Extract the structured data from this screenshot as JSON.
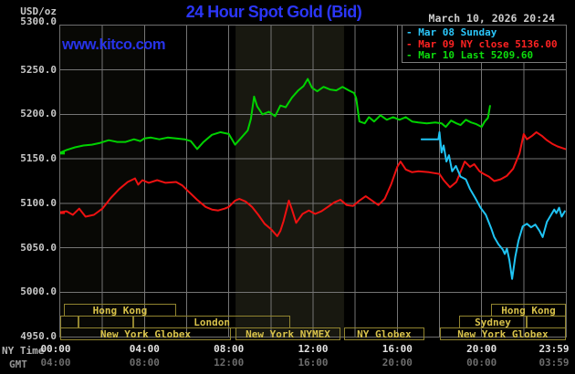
{
  "header": {
    "unit_label": "USD/oz",
    "title": "24 Hour Spot Gold (Bid)",
    "datetime": "March 10, 2026 20:24",
    "watermark": "www.kitco.com"
  },
  "legend": [
    {
      "marker": "-",
      "label": "Mar 08 Sunday",
      "color": "#2bc7fb"
    },
    {
      "marker": "-",
      "label": "Mar 09 NY close 5136.00",
      "color": "#ff2222"
    },
    {
      "marker": "-",
      "label": "Mar 10 Last 5209.60",
      "color": "#0ddd0d"
    }
  ],
  "axis": {
    "ny_time_label": "NY Time",
    "gmt_label": "GMT",
    "ny_ticks": [
      {
        "t": 0,
        "label": "00:00"
      },
      {
        "t": 4,
        "label": "04:00"
      },
      {
        "t": 8,
        "label": "08:00"
      },
      {
        "t": 12,
        "label": "12:00"
      },
      {
        "t": 16,
        "label": "16:00"
      },
      {
        "t": 20,
        "label": "20:00"
      },
      {
        "t": 24,
        "label": "23:59"
      }
    ],
    "gmt_ticks": [
      {
        "t": 0,
        "label": "04:00"
      },
      {
        "t": 4,
        "label": "08:00"
      },
      {
        "t": 8,
        "label": "12:00"
      },
      {
        "t": 12,
        "label": "16:00"
      },
      {
        "t": 16,
        "label": "20:00"
      },
      {
        "t": 20,
        "label": "00:00"
      },
      {
        "t": 24,
        "label": "03:59"
      }
    ],
    "y_ticks": [
      {
        "v": 5300,
        "label": "5300.0"
      },
      {
        "v": 5250,
        "label": "5250.0"
      },
      {
        "v": 5200,
        "label": "5200.0"
      },
      {
        "v": 5150,
        "label": "5150.0"
      },
      {
        "v": 5100,
        "label": "5100.0"
      },
      {
        "v": 5050,
        "label": "5050.0"
      },
      {
        "v": 5000,
        "label": "5000.0"
      },
      {
        "v": 4950,
        "label": "4950.0"
      }
    ]
  },
  "chart_data": {
    "type": "line",
    "title": "24 Hour Spot Gold (Bid)",
    "x_unit": "hours, NY time",
    "x_range": [
      0,
      24
    ],
    "y_range": [
      4950,
      5300
    ],
    "y_tick_step": 50,
    "x_gridline_every_hours": 2,
    "grid": true,
    "legend_position": "top-right",
    "shaded_bands": [
      {
        "t1": 0,
        "t2": 4,
        "opacity": 0.035
      },
      {
        "t1": 8.32,
        "t2": 13.47,
        "opacity": 0.1
      }
    ],
    "series": [
      {
        "id": "mar09",
        "name": "Mar 09 (NY close 5136.00)",
        "color": "#ee1111",
        "points": [
          [
            0.0,
            5090
          ],
          [
            0.3,
            5091
          ],
          [
            0.6,
            5087
          ],
          [
            0.9,
            5094
          ],
          [
            1.2,
            5085
          ],
          [
            1.6,
            5087
          ],
          [
            2.0,
            5094
          ],
          [
            2.4,
            5106
          ],
          [
            2.8,
            5116
          ],
          [
            3.2,
            5124
          ],
          [
            3.55,
            5128
          ],
          [
            3.7,
            5121
          ],
          [
            3.9,
            5126
          ],
          [
            4.2,
            5123
          ],
          [
            4.6,
            5126
          ],
          [
            5.0,
            5123
          ],
          [
            5.5,
            5124
          ],
          [
            5.8,
            5120
          ],
          [
            6.1,
            5113
          ],
          [
            6.5,
            5104
          ],
          [
            6.9,
            5096
          ],
          [
            7.2,
            5093
          ],
          [
            7.5,
            5092
          ],
          [
            7.8,
            5094
          ],
          [
            8.0,
            5096
          ],
          [
            8.3,
            5103
          ],
          [
            8.5,
            5105
          ],
          [
            8.8,
            5102
          ],
          [
            9.1,
            5096
          ],
          [
            9.4,
            5087
          ],
          [
            9.7,
            5077
          ],
          [
            10.0,
            5071
          ],
          [
            10.3,
            5063
          ],
          [
            10.45,
            5069
          ],
          [
            10.6,
            5080
          ],
          [
            10.85,
            5103
          ],
          [
            11.0,
            5093
          ],
          [
            11.2,
            5078
          ],
          [
            11.5,
            5088
          ],
          [
            11.8,
            5092
          ],
          [
            12.1,
            5088
          ],
          [
            12.4,
            5091
          ],
          [
            12.7,
            5096
          ],
          [
            13.0,
            5101
          ],
          [
            13.3,
            5104
          ],
          [
            13.6,
            5098
          ],
          [
            13.9,
            5097
          ],
          [
            14.2,
            5103
          ],
          [
            14.5,
            5108
          ],
          [
            14.8,
            5103
          ],
          [
            15.1,
            5098
          ],
          [
            15.4,
            5105
          ],
          [
            15.7,
            5121
          ],
          [
            16.0,
            5141
          ],
          [
            16.15,
            5147
          ],
          [
            16.4,
            5138
          ],
          [
            16.7,
            5135
          ],
          [
            17.0,
            5136
          ],
          [
            17.5,
            5135
          ],
          [
            18.0,
            5133
          ],
          [
            18.2,
            5126
          ],
          [
            18.5,
            5118
          ],
          [
            18.8,
            5124
          ],
          [
            19.05,
            5138
          ],
          [
            19.2,
            5147
          ],
          [
            19.45,
            5141
          ],
          [
            19.65,
            5144
          ],
          [
            19.9,
            5136
          ],
          [
            20.1,
            5133
          ],
          [
            20.35,
            5130
          ],
          [
            20.6,
            5125
          ],
          [
            20.9,
            5127
          ],
          [
            21.2,
            5131
          ],
          [
            21.5,
            5139
          ],
          [
            21.8,
            5156
          ],
          [
            22.0,
            5178
          ],
          [
            22.15,
            5172
          ],
          [
            22.4,
            5176
          ],
          [
            22.6,
            5180
          ],
          [
            22.85,
            5176
          ],
          [
            23.1,
            5171
          ],
          [
            23.35,
            5167
          ],
          [
            23.6,
            5164
          ],
          [
            23.98,
            5161
          ]
        ]
      },
      {
        "id": "mar08",
        "name": "Mar 08 Sunday",
        "color": "#1fc4f4",
        "points": [
          [
            17.15,
            5172
          ],
          [
            17.95,
            5172
          ],
          [
            18.0,
            5180
          ],
          [
            18.1,
            5157
          ],
          [
            18.2,
            5165
          ],
          [
            18.33,
            5147
          ],
          [
            18.45,
            5154
          ],
          [
            18.6,
            5136
          ],
          [
            18.78,
            5142
          ],
          [
            19.0,
            5130
          ],
          [
            19.25,
            5127
          ],
          [
            19.45,
            5116
          ],
          [
            19.7,
            5106
          ],
          [
            19.95,
            5095
          ],
          [
            20.2,
            5087
          ],
          [
            20.45,
            5072
          ],
          [
            20.6,
            5062
          ],
          [
            20.8,
            5054
          ],
          [
            21.0,
            5048
          ],
          [
            21.1,
            5043
          ],
          [
            21.2,
            5049
          ],
          [
            21.32,
            5036
          ],
          [
            21.45,
            5015
          ],
          [
            21.6,
            5040
          ],
          [
            21.75,
            5058
          ],
          [
            21.95,
            5074
          ],
          [
            22.15,
            5077
          ],
          [
            22.35,
            5073
          ],
          [
            22.55,
            5076
          ],
          [
            22.75,
            5069
          ],
          [
            22.9,
            5062
          ],
          [
            23.1,
            5079
          ],
          [
            23.3,
            5087
          ],
          [
            23.45,
            5093
          ],
          [
            23.55,
            5089
          ],
          [
            23.68,
            5095
          ],
          [
            23.8,
            5085
          ],
          [
            23.95,
            5091
          ]
        ]
      },
      {
        "id": "mar10",
        "name": "Mar 10 (Last 5209.60)",
        "color": "#00d200",
        "points": [
          [
            0.0,
            5157
          ],
          [
            0.3,
            5160
          ],
          [
            0.7,
            5163
          ],
          [
            1.1,
            5165
          ],
          [
            1.5,
            5166
          ],
          [
            1.9,
            5168
          ],
          [
            2.3,
            5171
          ],
          [
            2.7,
            5169
          ],
          [
            3.1,
            5169
          ],
          [
            3.5,
            5172
          ],
          [
            3.8,
            5170
          ],
          [
            4.0,
            5173
          ],
          [
            4.3,
            5174
          ],
          [
            4.7,
            5172
          ],
          [
            5.1,
            5174
          ],
          [
            5.5,
            5173
          ],
          [
            5.9,
            5172
          ],
          [
            6.2,
            5170
          ],
          [
            6.5,
            5161
          ],
          [
            6.8,
            5169
          ],
          [
            7.2,
            5177
          ],
          [
            7.6,
            5180
          ],
          [
            8.0,
            5178
          ],
          [
            8.3,
            5166
          ],
          [
            8.6,
            5174
          ],
          [
            8.9,
            5182
          ],
          [
            9.05,
            5195
          ],
          [
            9.2,
            5220
          ],
          [
            9.35,
            5209
          ],
          [
            9.6,
            5200
          ],
          [
            9.9,
            5203
          ],
          [
            10.2,
            5198
          ],
          [
            10.45,
            5210
          ],
          [
            10.7,
            5208
          ],
          [
            11.0,
            5219
          ],
          [
            11.3,
            5227
          ],
          [
            11.55,
            5232
          ],
          [
            11.75,
            5240
          ],
          [
            11.95,
            5230
          ],
          [
            12.2,
            5226
          ],
          [
            12.5,
            5231
          ],
          [
            12.8,
            5228
          ],
          [
            13.1,
            5227
          ],
          [
            13.4,
            5231
          ],
          [
            13.7,
            5227
          ],
          [
            13.95,
            5224
          ],
          [
            14.05,
            5218
          ],
          [
            14.2,
            5192
          ],
          [
            14.45,
            5190
          ],
          [
            14.65,
            5197
          ],
          [
            14.9,
            5192
          ],
          [
            15.2,
            5199
          ],
          [
            15.5,
            5194
          ],
          [
            15.8,
            5197
          ],
          [
            16.1,
            5194
          ],
          [
            16.4,
            5197
          ],
          [
            16.7,
            5192
          ],
          [
            17.0,
            5191
          ],
          [
            17.4,
            5190
          ],
          [
            17.8,
            5191
          ],
          [
            18.1,
            5190
          ],
          [
            18.3,
            5186
          ],
          [
            18.55,
            5193
          ],
          [
            18.8,
            5190
          ],
          [
            19.0,
            5188
          ],
          [
            19.25,
            5194
          ],
          [
            19.5,
            5191
          ],
          [
            19.75,
            5189
          ],
          [
            20.0,
            5186
          ],
          [
            20.15,
            5192
          ],
          [
            20.3,
            5196
          ],
          [
            20.4,
            5209.6
          ]
        ]
      }
    ],
    "sessions": [
      {
        "row": 0,
        "boxes": [
          {
            "t1": 0.17,
            "t2": 5.5,
            "label": "Hong Kong"
          },
          {
            "t1": 20.45,
            "t2": 24.0,
            "label": "Hong Kong"
          }
        ]
      },
      {
        "row": 1,
        "boxes": [
          {
            "t1": 0.0,
            "t2": 0.87,
            "label": ""
          },
          {
            "t1": 0.87,
            "t2": 3.47,
            "label": ""
          },
          {
            "t1": 3.47,
            "t2": 10.92,
            "label": "London"
          },
          {
            "t1": 18.93,
            "t2": 22.14,
            "label": "Sydney"
          },
          {
            "t1": 22.14,
            "t2": 24.0,
            "label": ""
          }
        ]
      },
      {
        "row": 2,
        "boxes": [
          {
            "t1": 0.0,
            "t2": 8.1,
            "label": "New York Globex"
          },
          {
            "t1": 8.32,
            "t2": 13.3,
            "label": "New York NYMEX"
          },
          {
            "t1": 13.47,
            "t2": 17.28,
            "label": "NY Globex"
          },
          {
            "t1": 18.02,
            "t2": 24.0,
            "label": "New York Globex"
          }
        ]
      }
    ]
  },
  "colors": {
    "background": "#000000",
    "title_blue": "#2b36f8",
    "watermark_blue": "#2733e8",
    "grid": "#757575",
    "plot_border": "#6f6f6f",
    "band_fill": "#e8e89a",
    "y_label": "#c8c8c8",
    "x_label_ny": "#e2e2e2",
    "x_label_gmt": "#6c6c6c",
    "ny_time_color": "#b4b4b4",
    "gmt_color": "#949494",
    "datetime_color": "#cccccc",
    "session_text": "#d8c24a",
    "session_border": "#91842f"
  }
}
